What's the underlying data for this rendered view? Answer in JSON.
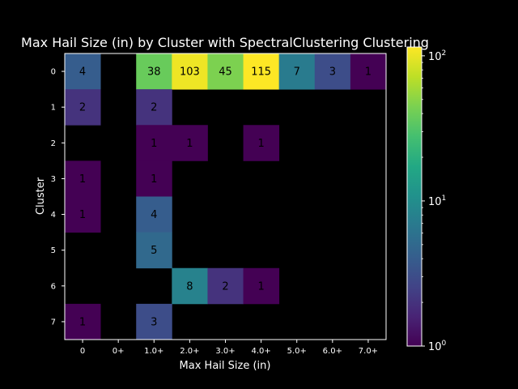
{
  "chart_data": {
    "type": "heatmap",
    "title": "Max Hail Size (in) by Cluster with SpectralClustering Clustering",
    "xlabel": "Max Hail Size (in)",
    "ylabel": "Cluster",
    "x_categories": [
      "0",
      "0+",
      "1.0+",
      "2.0+",
      "3.0+",
      "4.0+",
      "5.0+",
      "6.0+",
      "7.0+"
    ],
    "y_categories": [
      "0",
      "1",
      "2",
      "3",
      "4",
      "5",
      "6",
      "7"
    ],
    "values": [
      [
        4,
        null,
        38,
        103,
        45,
        115,
        7,
        3,
        1
      ],
      [
        2,
        null,
        2,
        null,
        null,
        null,
        null,
        null,
        null
      ],
      [
        null,
        null,
        1,
        1,
        null,
        1,
        null,
        null,
        null
      ],
      [
        1,
        null,
        1,
        null,
        null,
        null,
        null,
        null,
        null
      ],
      [
        1,
        null,
        4,
        null,
        null,
        null,
        null,
        null,
        null
      ],
      [
        null,
        null,
        5,
        null,
        null,
        null,
        null,
        null,
        null
      ],
      [
        null,
        null,
        null,
        8,
        2,
        1,
        null,
        null,
        null
      ],
      [
        1,
        null,
        3,
        null,
        null,
        null,
        null,
        null,
        null
      ]
    ],
    "colormap": "viridis",
    "color_scale": "log",
    "clim": [
      1,
      115
    ],
    "colorbar_ticks": [
      {
        "value": 1,
        "label": "10",
        "exp": "0"
      },
      {
        "value": 10,
        "label": "10",
        "exp": "1"
      },
      {
        "value": 100,
        "label": "10",
        "exp": "2"
      }
    ],
    "empty_cell_color": "#000000",
    "background": "#000000"
  }
}
